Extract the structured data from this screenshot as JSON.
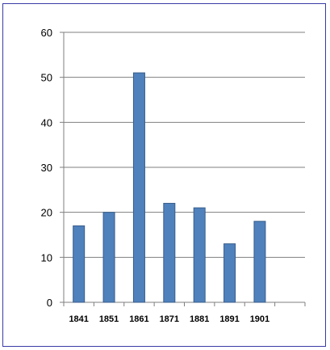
{
  "chart_data": {
    "type": "bar",
    "categories": [
      "1841",
      "1851",
      "1861",
      "1871",
      "1881",
      "1891",
      "1901",
      ""
    ],
    "values": [
      17,
      20,
      51,
      22,
      21,
      13,
      18,
      null
    ],
    "ylim": [
      0,
      60
    ],
    "yticks": [
      "0",
      "10",
      "20",
      "30",
      "40",
      "50",
      "60"
    ],
    "grid": true,
    "legend": "none",
    "bar_color": "#4f81bd",
    "bar_edge_color": "#385d8a",
    "frame_color": "#3a3aa8"
  }
}
